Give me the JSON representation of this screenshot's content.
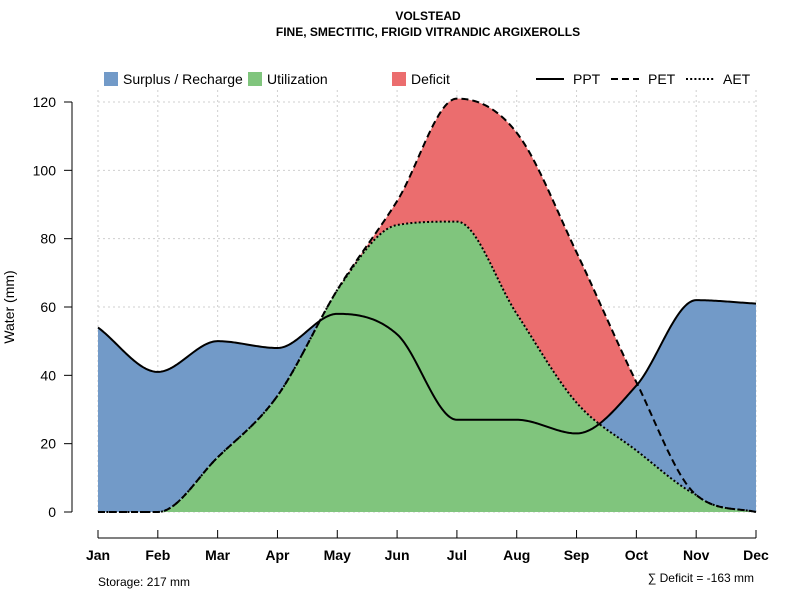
{
  "chart_data": {
    "type": "area",
    "title": "VOLSTEAD",
    "subtitle": "FINE, SMECTITIC, FRIGID VITRANDIC ARGIXEROLLS",
    "xlabel": "",
    "ylabel": "Water (mm)",
    "ylim": [
      0,
      120
    ],
    "yticks": [
      0,
      20,
      40,
      60,
      80,
      100,
      120
    ],
    "categories": [
      "Jan",
      "Feb",
      "Mar",
      "Apr",
      "May",
      "Jun",
      "Jul",
      "Aug",
      "Sep",
      "Oct",
      "Nov",
      "Dec"
    ],
    "grid": true,
    "series": [
      {
        "name": "PPT",
        "style": "solid",
        "values": [
          54,
          41,
          50,
          48,
          58,
          52,
          27,
          27,
          23,
          37,
          62,
          61
        ]
      },
      {
        "name": "PET",
        "style": "dashed",
        "values": [
          0,
          0,
          16,
          34,
          65,
          91,
          121,
          111,
          76,
          38,
          5,
          0
        ]
      },
      {
        "name": "AET",
        "style": "dotted",
        "values": [
          0,
          0,
          16,
          34,
          65,
          84,
          85,
          58,
          32,
          18,
          5,
          0
        ]
      }
    ],
    "legend": {
      "placement": "top",
      "fills": [
        {
          "label": "Surplus / Recharge",
          "color": "#729ac8"
        },
        {
          "label": "Utilization",
          "color": "#80c57d"
        },
        {
          "label": "Deficit",
          "color": "#eb6d6e"
        }
      ],
      "lines": [
        {
          "label": "PPT",
          "style": "solid"
        },
        {
          "label": "PET",
          "style": "dashed"
        },
        {
          "label": "AET",
          "style": "dotted"
        }
      ]
    },
    "annotations": {
      "storage": "Storage: 217 mm",
      "deficit": "∑ Deficit = -163 mm"
    }
  }
}
